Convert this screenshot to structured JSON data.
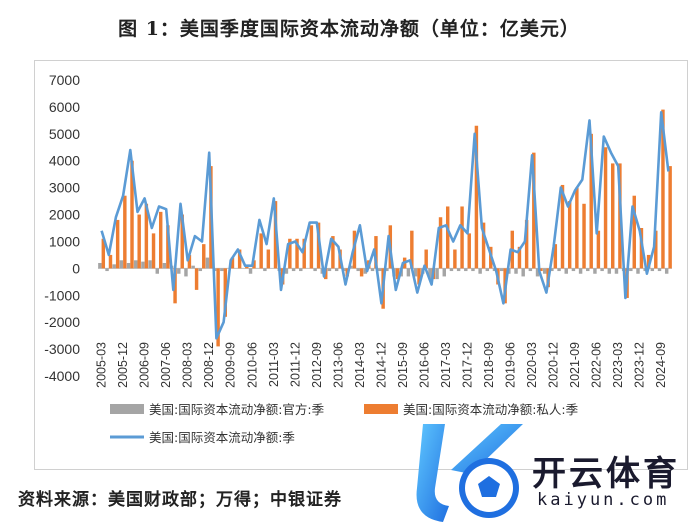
{
  "header": {
    "title": "图 1：美国季度国际资本流动净额（单位：亿美元）"
  },
  "footer": {
    "source": "资料来源：美国财政部；万得；中银证券"
  },
  "watermark": {
    "name": "开云体育",
    "url": "kaiyun.com"
  },
  "colors": {
    "official": "#a5a5a5",
    "private": "#ed7d31",
    "total": "#5b9bd5"
  },
  "chart_data": {
    "type": "bar",
    "title": "",
    "xlabel": "",
    "ylabel": "",
    "ylim": [
      -4000,
      7000
    ],
    "yticks": [
      -4000,
      -3000,
      -2000,
      -1000,
      0,
      1000,
      2000,
      3000,
      4000,
      5000,
      6000,
      7000
    ],
    "grid": false,
    "legend_position": "bottom",
    "xtick_labels": [
      "2005-03",
      "2005-12",
      "2006-09",
      "2007-06",
      "2008-03",
      "2008-12",
      "2009-09",
      "2010-06",
      "2011-03",
      "2011-12",
      "2012-09",
      "2013-06",
      "2014-03",
      "2014-12",
      "2015-09",
      "2016-06",
      "2017-03",
      "2017-12",
      "2018-09",
      "2019-06",
      "2020-03",
      "2020-12",
      "2021-09",
      "2022-06",
      "2023-03",
      "2023-12",
      "2024-09"
    ],
    "categories": [
      "2005-03",
      "2005-06",
      "2005-09",
      "2005-12",
      "2006-03",
      "2006-06",
      "2006-09",
      "2006-12",
      "2007-03",
      "2007-06",
      "2007-09",
      "2007-12",
      "2008-03",
      "2008-06",
      "2008-09",
      "2008-12",
      "2009-03",
      "2009-06",
      "2009-09",
      "2009-12",
      "2010-03",
      "2010-06",
      "2010-09",
      "2010-12",
      "2011-03",
      "2011-06",
      "2011-09",
      "2011-12",
      "2012-03",
      "2012-06",
      "2012-09",
      "2012-12",
      "2013-03",
      "2013-06",
      "2013-09",
      "2013-12",
      "2014-03",
      "2014-06",
      "2014-09",
      "2014-12",
      "2015-03",
      "2015-06",
      "2015-09",
      "2015-12",
      "2016-03",
      "2016-06",
      "2016-09",
      "2016-12",
      "2017-03",
      "2017-06",
      "2017-09",
      "2017-12",
      "2018-03",
      "2018-06",
      "2018-09",
      "2018-12",
      "2019-03",
      "2019-06",
      "2019-09",
      "2019-12",
      "2020-03",
      "2020-06",
      "2020-09",
      "2020-12",
      "2021-03",
      "2021-06",
      "2021-09",
      "2021-12",
      "2022-03",
      "2022-06",
      "2022-09",
      "2022-12",
      "2023-03",
      "2023-06",
      "2023-09",
      "2023-12",
      "2024-03",
      "2024-06",
      "2024-09",
      "2024-12"
    ],
    "series": [
      {
        "name": "美国:国际资本流动净额:官方:季",
        "type": "bar",
        "values": [
          200,
          -100,
          150,
          300,
          200,
          300,
          250,
          300,
          -200,
          200,
          100,
          -200,
          -300,
          100,
          -100,
          400,
          -100,
          -100,
          0,
          0,
          0,
          -200,
          0,
          -100,
          0,
          -100,
          -200,
          -100,
          -100,
          0,
          -100,
          -200,
          -100,
          -100,
          -100,
          100,
          -100,
          -200,
          -100,
          -100,
          -100,
          -300,
          -300,
          -300,
          -300,
          -200,
          -400,
          -400,
          -300,
          -100,
          -100,
          -100,
          -100,
          -200,
          -100,
          -100,
          -100,
          -200,
          -200,
          -300,
          -100,
          -300,
          -200,
          -100,
          -100,
          -200,
          -100,
          -200,
          -100,
          -200,
          -100,
          -200,
          -200,
          -100,
          -100,
          -200,
          -100,
          -100,
          -100,
          -200
        ]
      },
      {
        "name": "美国:国际资本流动净额:私人:季",
        "type": "bar",
        "values": [
          1100,
          500,
          1800,
          2700,
          4000,
          2000,
          2400,
          1300,
          2100,
          1600,
          -1300,
          2000,
          500,
          -800,
          900,
          3800,
          -2900,
          -1800,
          400,
          700,
          100,
          300,
          1300,
          700,
          2500,
          -600,
          1100,
          1100,
          1100,
          1600,
          1700,
          -400,
          1200,
          700,
          -300,
          1400,
          -300,
          300,
          1200,
          -1500,
          1600,
          -400,
          400,
          1400,
          -600,
          700,
          -400,
          1900,
          2300,
          700,
          2300,
          1300,
          5300,
          1700,
          800,
          -600,
          -1300,
          1400,
          800,
          1800,
          4300,
          -100,
          -700,
          900,
          3100,
          2500,
          3000,
          2400,
          5000,
          1400,
          4500,
          3900,
          3900,
          -1100,
          2700,
          1500,
          500,
          1400,
          5900,
          3800
        ]
      },
      {
        "name": "美国:国际资本流动净额:季",
        "type": "line",
        "values": [
          1400,
          500,
          1900,
          2700,
          4400,
          2100,
          2600,
          1500,
          2300,
          2200,
          -800,
          2400,
          300,
          1200,
          1000,
          4300,
          -2600,
          -2000,
          300,
          700,
          100,
          100,
          1800,
          900,
          2600,
          -800,
          900,
          1000,
          600,
          1700,
          1700,
          -300,
          1100,
          800,
          -600,
          600,
          1600,
          -100,
          700,
          -1300,
          1200,
          -800,
          200,
          300,
          -900,
          100,
          -600,
          1500,
          1600,
          1000,
          1600,
          1300,
          5000,
          1500,
          700,
          -100,
          -1300,
          700,
          600,
          1000,
          4200,
          -100,
          -900,
          800,
          3000,
          2300,
          2900,
          3300,
          5500,
          1300,
          4900,
          4300,
          3800,
          -1100,
          2300,
          1400,
          -200,
          800,
          5800,
          3600
        ]
      }
    ]
  }
}
